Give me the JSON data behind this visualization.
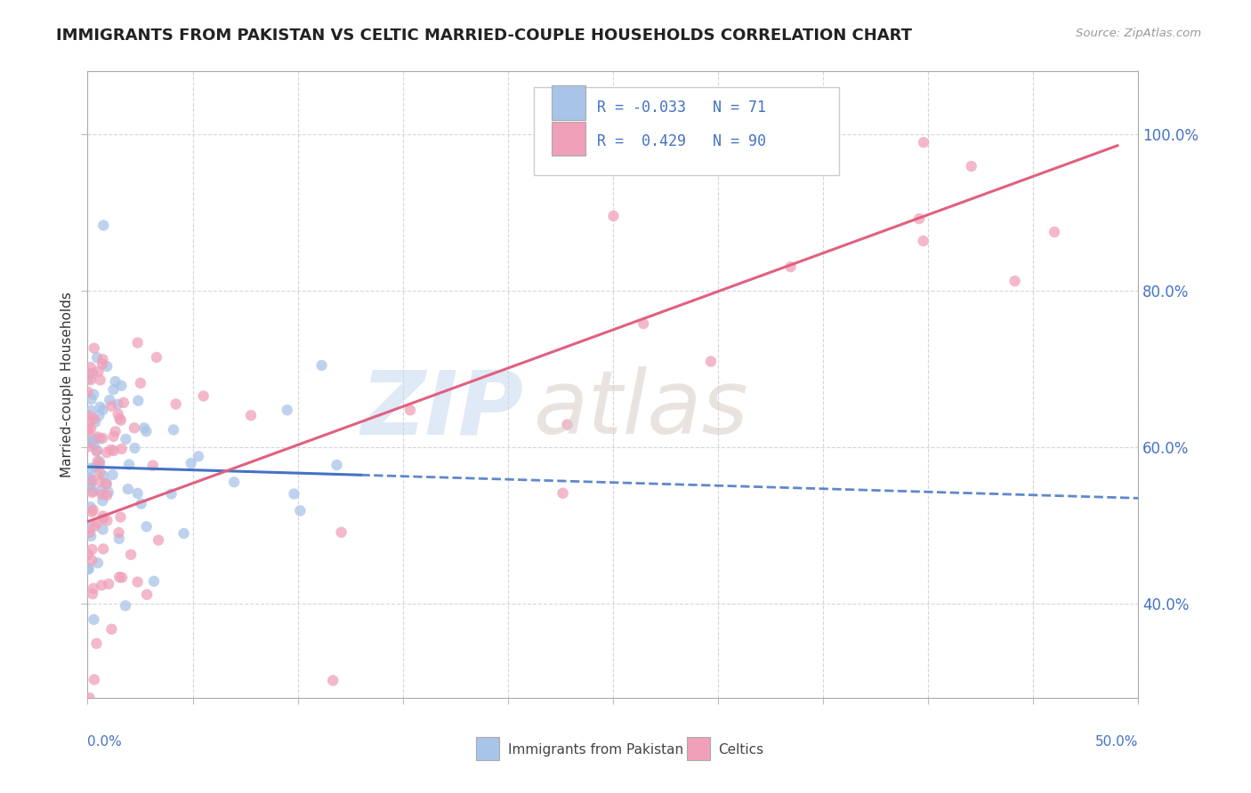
{
  "title": "IMMIGRANTS FROM PAKISTAN VS CELTIC MARRIED-COUPLE HOUSEHOLDS CORRELATION CHART",
  "source_text": "Source: ZipAtlas.com",
  "ylabel": "Married-couple Households",
  "blue_R": -0.033,
  "blue_N": 71,
  "pink_R": 0.429,
  "pink_N": 90,
  "blue_color": "#a8c4e8",
  "pink_color": "#f0a0b8",
  "blue_line_color": "#4472c4",
  "pink_line_color": "#e06080",
  "xlim": [
    0.0,
    50.0
  ],
  "ylim": [
    28.0,
    108.0
  ],
  "ytick_values": [
    40.0,
    60.0,
    80.0,
    100.0
  ],
  "ytick_labels": [
    "40.0%",
    "60.0%",
    "80.0%",
    "100.0%"
  ],
  "watermark_zip": "ZIP",
  "watermark_atlas": "atlas",
  "grid_color": "#cccccc",
  "background_color": "#ffffff"
}
